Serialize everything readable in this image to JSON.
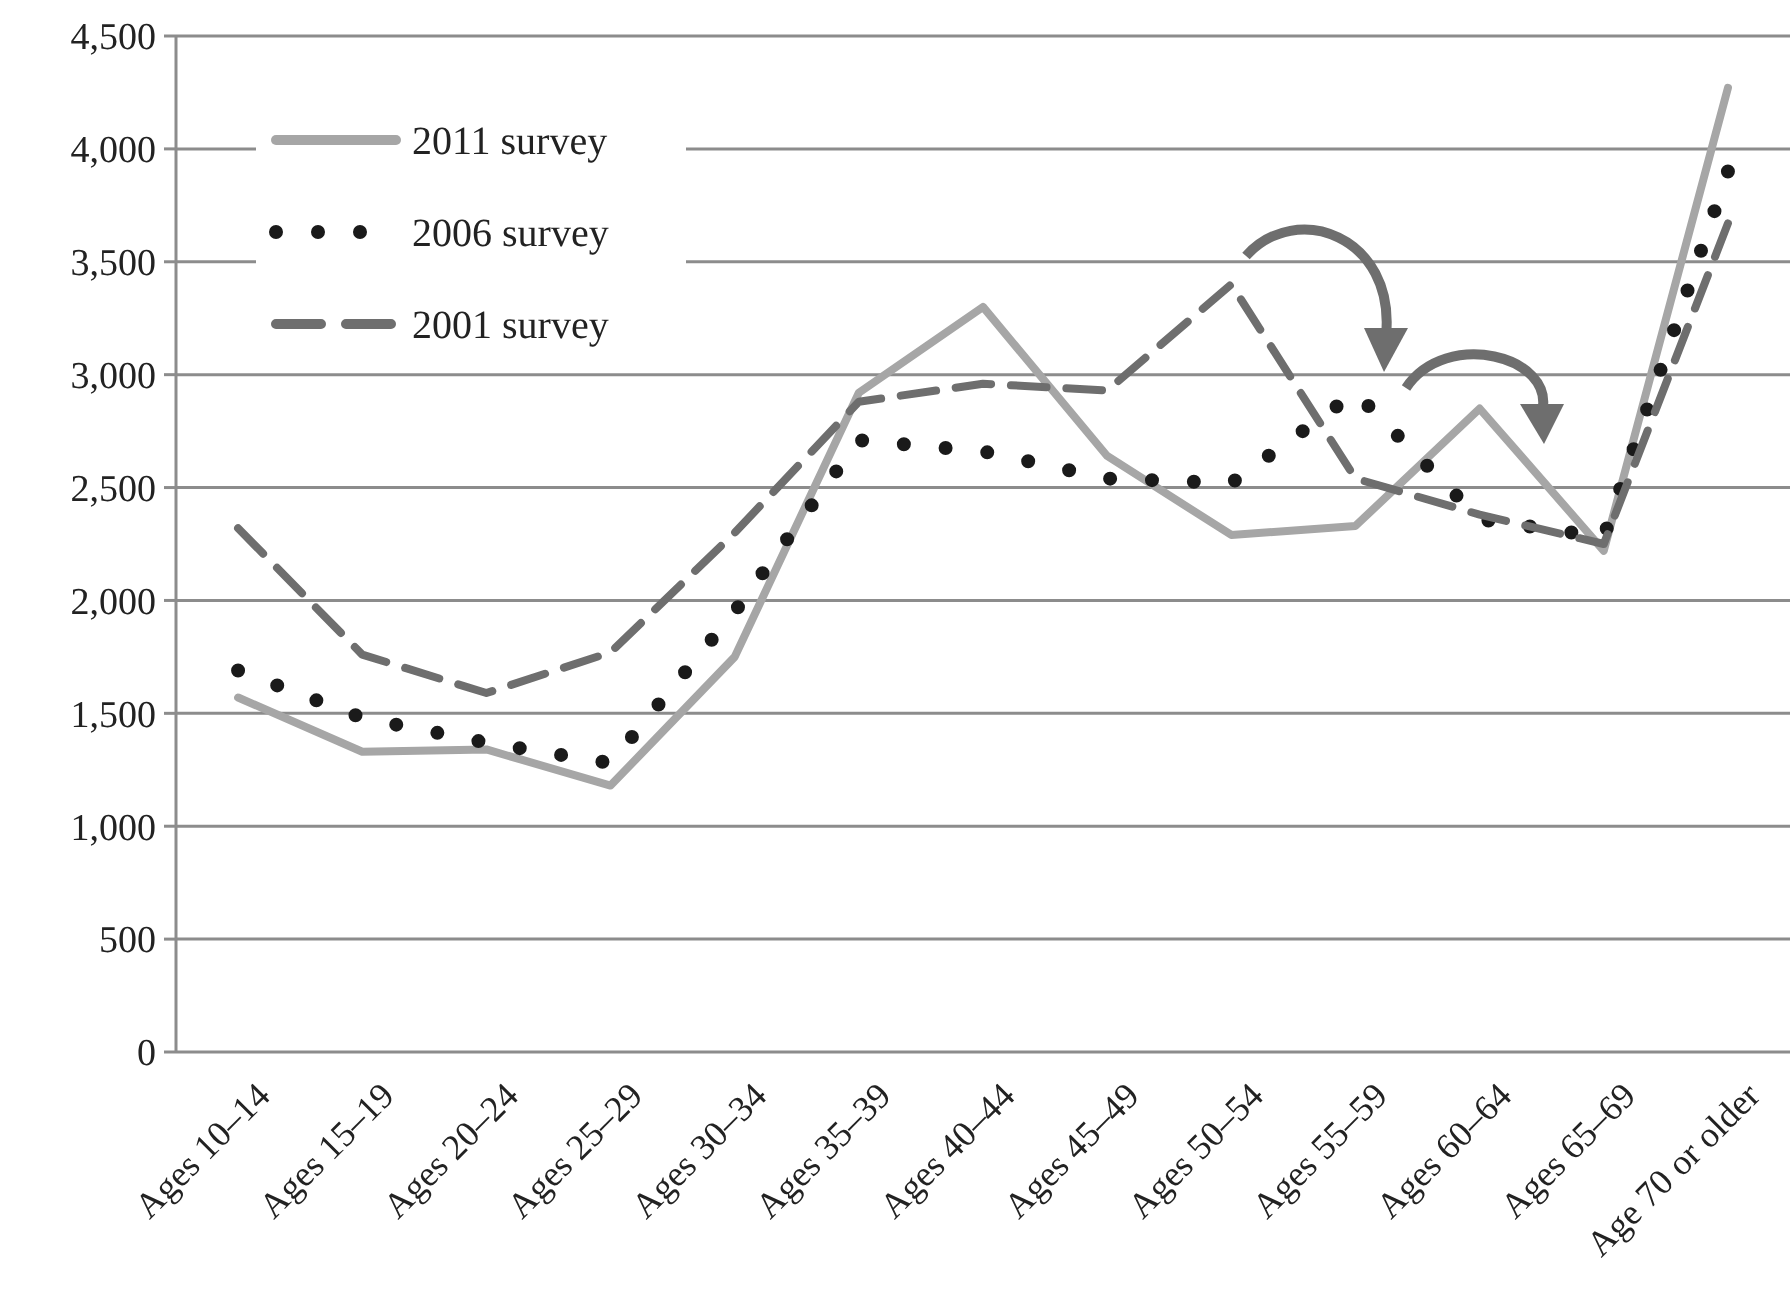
{
  "chart_data": {
    "type": "line",
    "categories": [
      "Ages 10–14",
      "Ages 15–19",
      "Ages 20–24",
      "Ages 25–29",
      "Ages 30–34",
      "Ages 35–39",
      "Ages 40–44",
      "Ages 45–49",
      "Ages 50–54",
      "Ages 55–59",
      "Ages 60–64",
      "Ages 65–69",
      "Age 70 or older"
    ],
    "series": [
      {
        "name": "2011 survey",
        "color": "#a6a6a6",
        "line_style": "solid",
        "values": [
          1570,
          1330,
          1340,
          1180,
          1750,
          2920,
          3300,
          2640,
          2290,
          2330,
          2850,
          2220,
          4270
        ]
      },
      {
        "name": "2006 survey",
        "color": "#1a1a1a",
        "line_style": "dotted",
        "values": [
          1690,
          1480,
          1370,
          1280,
          1950,
          2710,
          2660,
          2540,
          2520,
          2920,
          2360,
          2280,
          3900
        ]
      },
      {
        "name": "2001 survey",
        "color": "#6e6e6e",
        "line_style": "dashed",
        "values": [
          2320,
          1760,
          1590,
          1770,
          2300,
          2880,
          2960,
          2930,
          3400,
          2540,
          2380,
          2250,
          3670
        ]
      }
    ],
    "ylim": [
      0,
      4500
    ],
    "yticks": [
      {
        "value": 0,
        "label": "0"
      },
      {
        "value": 500,
        "label": "500"
      },
      {
        "value": 1000,
        "label": "1,000"
      },
      {
        "value": 1500,
        "label": "1,500"
      },
      {
        "value": 2000,
        "label": "2,000"
      },
      {
        "value": 2500,
        "label": "2,500"
      },
      {
        "value": 3000,
        "label": "3,000"
      },
      {
        "value": 3500,
        "label": "3,500"
      },
      {
        "value": 4000,
        "label": "4,000"
      },
      {
        "value": 4500,
        "label": "4,500"
      }
    ],
    "grid": "y",
    "legend": "top left",
    "marker": "none"
  }
}
